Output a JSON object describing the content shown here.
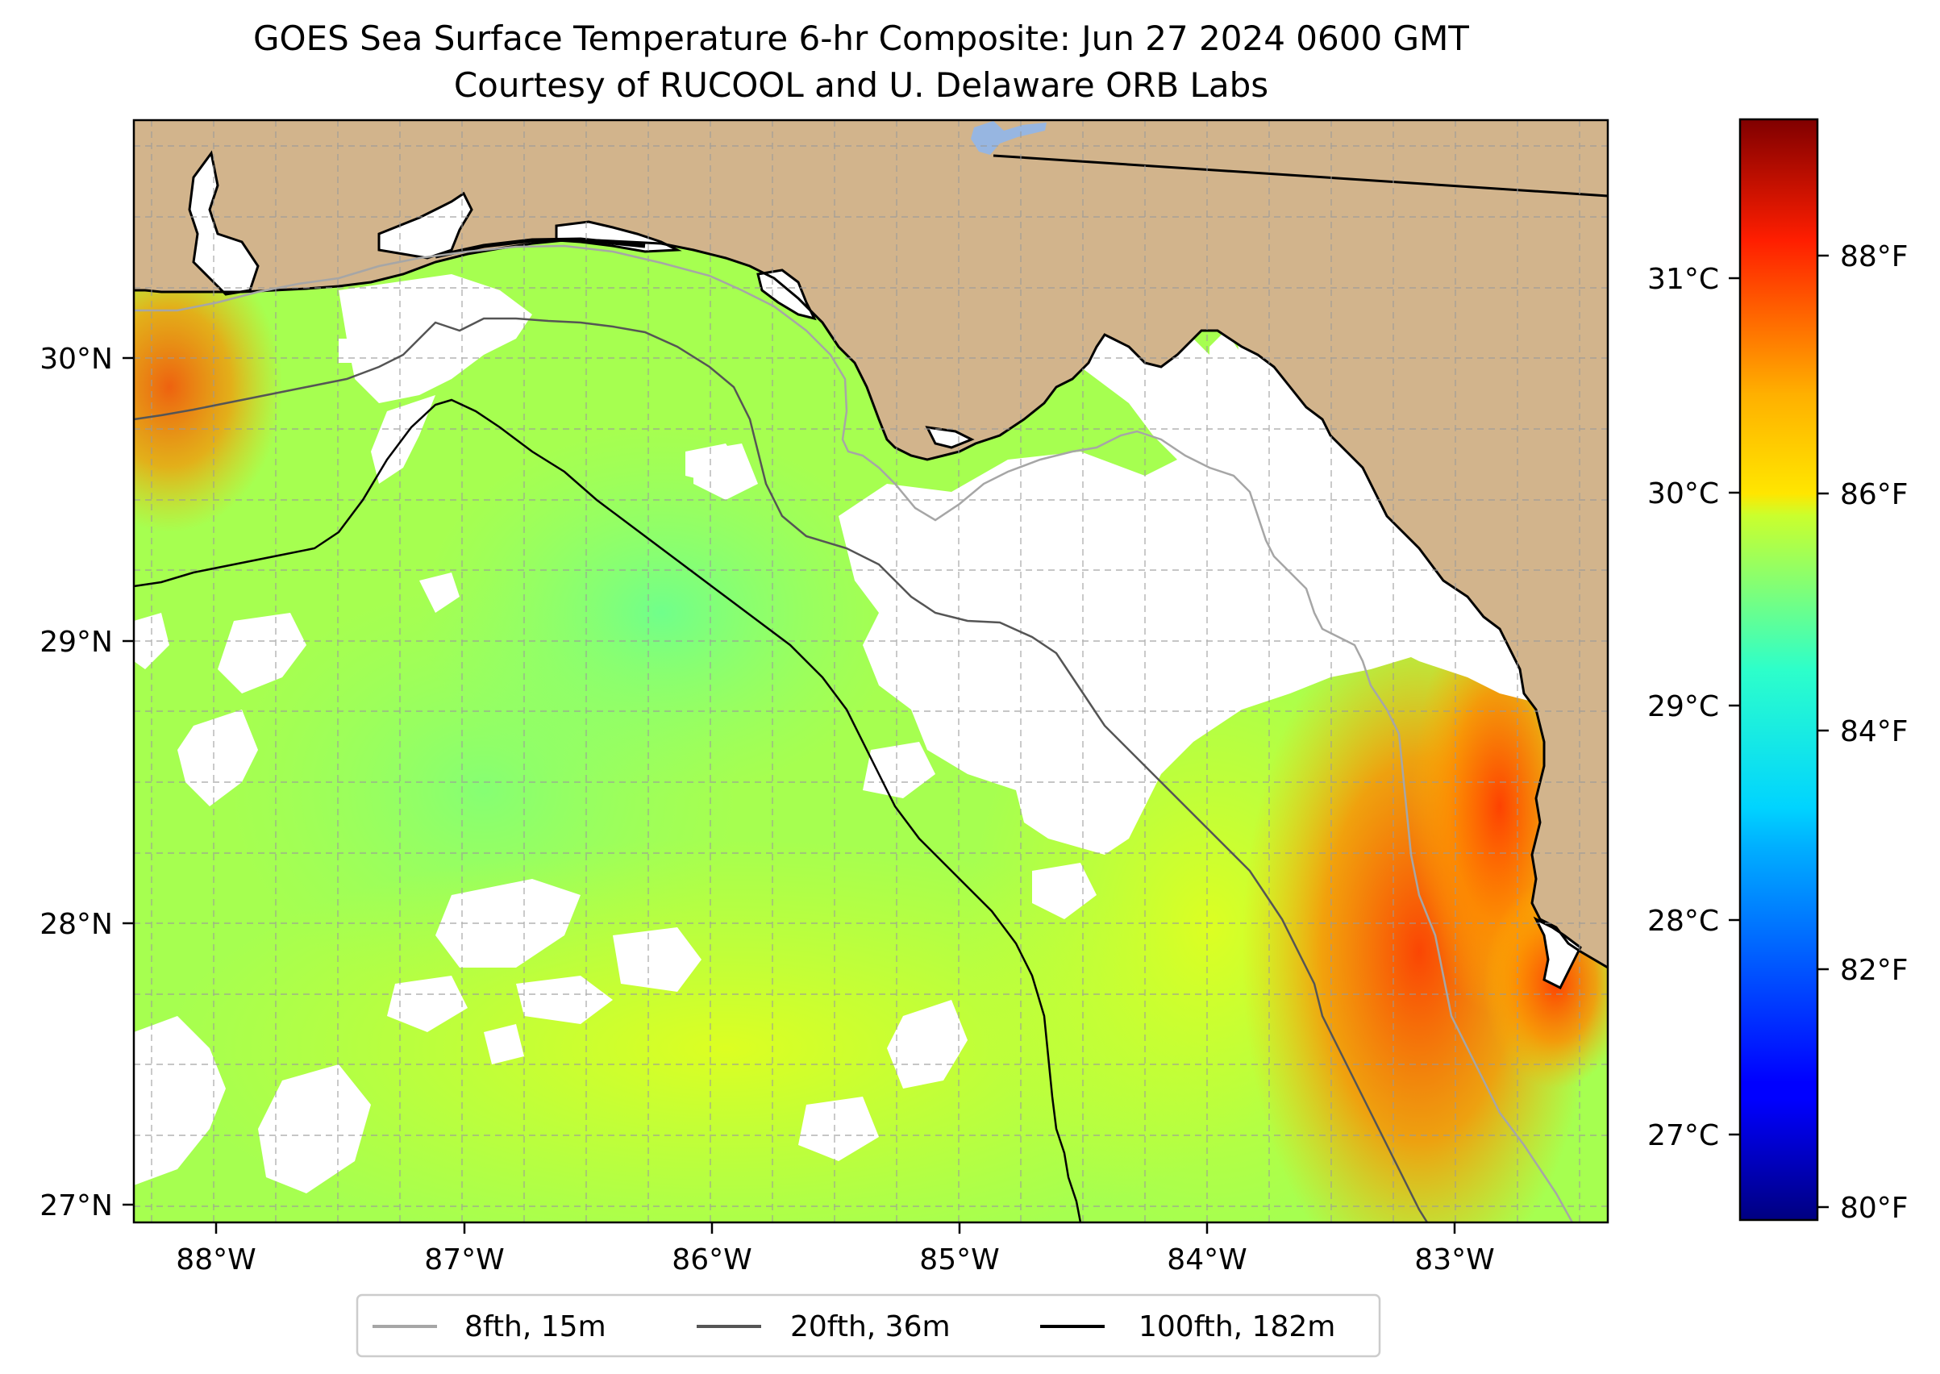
{
  "title": {
    "line1": "GOES Sea Surface Temperature 6-hr Composite: Jun 27 2024 0600 GMT",
    "line2": "Courtesy of RUCOOL and U. Delaware ORB Labs"
  },
  "map": {
    "lon_range": [
      -88.33,
      -82.37
    ],
    "lat_range": [
      26.93,
      30.83
    ],
    "x_ticks": [
      {
        "lon": -88,
        "label": "88°W"
      },
      {
        "lon": -87,
        "label": "87°W"
      },
      {
        "lon": -86,
        "label": "86°W"
      },
      {
        "lon": -85,
        "label": "85°W"
      },
      {
        "lon": -84,
        "label": "84°W"
      },
      {
        "lon": -83,
        "label": "83°W"
      }
    ],
    "y_ticks": [
      {
        "lat": 27,
        "label": "27°N"
      },
      {
        "lat": 28,
        "label": "28°N"
      },
      {
        "lat": 29,
        "label": "29°N"
      },
      {
        "lat": 30,
        "label": "30°N"
      }
    ],
    "gridlines": true,
    "land_color": "#d2b48c",
    "lake_color": "#97b6e1",
    "no_data_color": "#ffffff",
    "isobath_colors": [
      "#a6a6a6",
      "#555555",
      "#000000"
    ]
  },
  "legend": {
    "placement": "bottom-center",
    "items": [
      {
        "label": "8fth, 15m",
        "color": "#a6a6a6"
      },
      {
        "label": "20fth, 36m",
        "color": "#555555"
      },
      {
        "label": "100fth, 182m",
        "color": "#000000"
      }
    ]
  },
  "colorbar": {
    "colormap": "jet",
    "range_F": [
      79.9,
      89.5
    ],
    "celsius_ticks": [
      {
        "value": 27,
        "label": "27°C"
      },
      {
        "value": 28,
        "label": "28°C"
      },
      {
        "value": 29,
        "label": "29°C"
      },
      {
        "value": 30,
        "label": "30°C"
      },
      {
        "value": 31,
        "label": "31°C"
      }
    ],
    "fahrenheit_ticks": [
      {
        "value": 80,
        "label": "80°F"
      },
      {
        "value": 82,
        "label": "82°F"
      },
      {
        "value": 84,
        "label": "84°F"
      },
      {
        "value": 86,
        "label": "86°F"
      },
      {
        "value": 88,
        "label": "88°F"
      }
    ]
  }
}
